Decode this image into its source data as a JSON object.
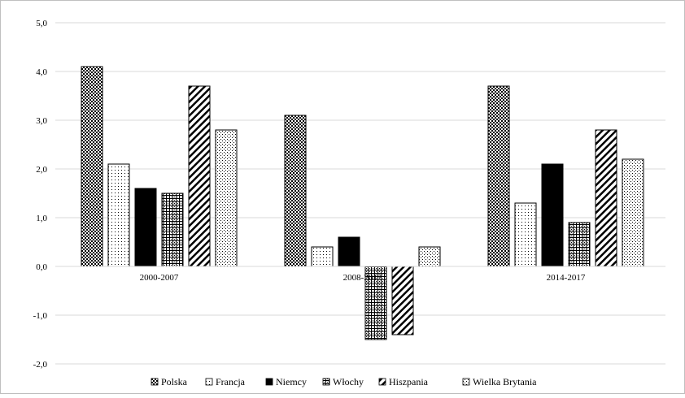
{
  "chart_data": {
    "type": "bar",
    "title": "",
    "xlabel": "",
    "ylabel": "",
    "categories": [
      "2000-2007",
      "2008-2013",
      "2014-2017"
    ],
    "ylim": [
      -2.0,
      5.0
    ],
    "yticks": [
      "5,0",
      "4,0",
      "3,0",
      "2,0",
      "1,0",
      "0,0",
      "-1,0",
      "-2,0"
    ],
    "grid": true,
    "legend_position": "bottom",
    "series": [
      {
        "name": "Polska",
        "values": [
          4.1,
          3.1,
          3.7
        ],
        "pattern": "dense-dots"
      },
      {
        "name": "Francja",
        "values": [
          2.1,
          0.4,
          1.3
        ],
        "pattern": "light-dots"
      },
      {
        "name": "Niemcy",
        "values": [
          1.6,
          0.6,
          2.1
        ],
        "pattern": "black"
      },
      {
        "name": "Włochy",
        "values": [
          1.5,
          -1.5,
          0.9
        ],
        "pattern": "grid-dots"
      },
      {
        "name": "Hiszpania",
        "values": [
          3.7,
          -1.4,
          2.8
        ],
        "pattern": "diagonal"
      },
      {
        "name": "Wielka Brytania",
        "values": [
          2.8,
          0.4,
          2.2
        ],
        "pattern": "medium-dots"
      }
    ]
  }
}
